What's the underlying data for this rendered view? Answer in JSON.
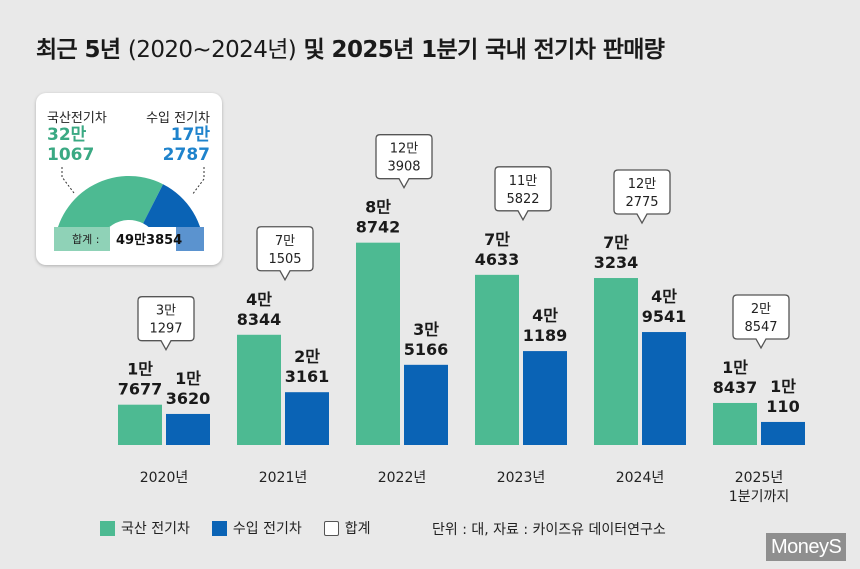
{
  "title": {
    "main1": "최근 5년",
    "paren": "(2020~2024년)",
    "main2": "및 2025년 1분기 국내 전기차 판매량"
  },
  "colors": {
    "domestic": "#4dba92",
    "imported": "#0a63b5",
    "total_box": "#ffffff"
  },
  "chart_data": {
    "type": "bar",
    "title": "최근 5년(2020~2024년) 및 2025년 1분기 국내 전기차 판매량",
    "unit": "대",
    "categories": [
      [
        "2020년"
      ],
      [
        "2021년"
      ],
      [
        "2022년"
      ],
      [
        "2023년"
      ],
      [
        "2024년"
      ],
      [
        "2025년",
        "1분기까지"
      ]
    ],
    "series": [
      {
        "name": "국산 전기차",
        "values": [
          17677,
          48344,
          88742,
          74633,
          73234,
          18437
        ],
        "labels": [
          [
            "1만",
            "7677"
          ],
          [
            "4만",
            "8344"
          ],
          [
            "8만",
            "8742"
          ],
          [
            "7만",
            "4633"
          ],
          [
            "7만",
            "3234"
          ],
          [
            "1만",
            "8437"
          ]
        ]
      },
      {
        "name": "수입 전기차",
        "values": [
          13620,
          23161,
          35166,
          41189,
          49541,
          10110
        ],
        "labels": [
          [
            "1만",
            "3620"
          ],
          [
            "2만",
            "3161"
          ],
          [
            "3만",
            "5166"
          ],
          [
            "4만",
            "1189"
          ],
          [
            "4만",
            "9541"
          ],
          [
            "1만",
            "110"
          ]
        ]
      }
    ],
    "totals": {
      "name": "합계",
      "values": [
        31297,
        71505,
        123908,
        115822,
        122775,
        28547
      ],
      "labels": [
        [
          "3만",
          "1297"
        ],
        [
          "7만",
          "1505"
        ],
        [
          "12만",
          "3908"
        ],
        [
          "11만",
          "5822"
        ],
        [
          "12만",
          "2775"
        ],
        [
          "2만",
          "8547"
        ]
      ]
    },
    "ylim": [
      0,
      100000
    ],
    "legend": [
      "국산 전기차",
      "수입 전기차",
      "합계"
    ],
    "legend_position": "bottom-left"
  },
  "inset": {
    "domestic_label": "국산전기차",
    "imported_label": "수입 전기차",
    "domestic_value": 321067,
    "imported_value": 172787,
    "domestic_lines": [
      "32만",
      "1067"
    ],
    "imported_lines": [
      "17만",
      "2787"
    ],
    "total_label": "합계 :",
    "total_value": "49만3854"
  },
  "legend": {
    "domestic": "국산 전기차",
    "imported": "수입 전기차",
    "total": "합계"
  },
  "source": "단위 : 대, 자료 : 카이즈유 데이터연구소",
  "logo": "MoneyS"
}
